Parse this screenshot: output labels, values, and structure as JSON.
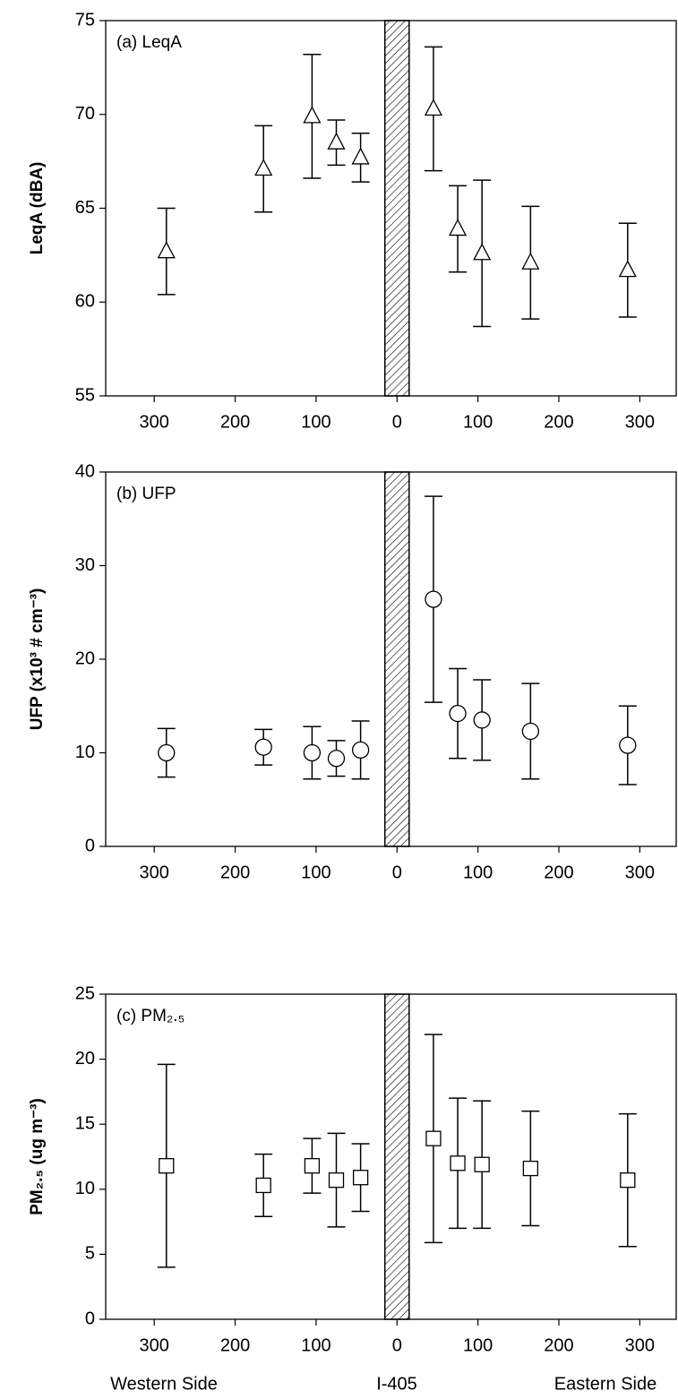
{
  "chart_data": [
    {
      "type": "scatter",
      "panel_label": "(a) LeqA",
      "ylabel": "LeqA (dBA)",
      "marker": "triangle",
      "x": [
        -285,
        -165,
        -105,
        -75,
        -45,
        45,
        75,
        105,
        165,
        285
      ],
      "values": [
        62.7,
        67.1,
        69.9,
        68.5,
        67.7,
        70.3,
        63.9,
        62.6,
        62.1,
        61.7
      ],
      "errors": [
        2.3,
        2.3,
        3.3,
        1.2,
        1.3,
        3.3,
        2.3,
        3.9,
        3.0,
        2.5
      ],
      "xlim": [
        -360,
        345
      ],
      "xticks": [
        {
          "value": -300,
          "label": "300"
        },
        {
          "value": -200,
          "label": "200"
        },
        {
          "value": -100,
          "label": "100"
        },
        0,
        100,
        200,
        300
      ],
      "ylim": [
        55,
        75
      ],
      "yticks": [
        55,
        60,
        65,
        70,
        75
      ],
      "shaded_region": [
        -15,
        15
      ]
    },
    {
      "type": "scatter",
      "panel_label": "(b) UFP",
      "ylabel": "UFP (x10³ # cm⁻³)",
      "marker": "circle",
      "x": [
        -285,
        -165,
        -105,
        -75,
        -45,
        45,
        75,
        105,
        165,
        285
      ],
      "values": [
        10.0,
        10.6,
        10.0,
        9.4,
        10.3,
        26.4,
        14.2,
        13.5,
        12.3,
        10.8
      ],
      "errors": [
        2.6,
        1.9,
        2.8,
        1.9,
        3.1,
        11.0,
        4.8,
        4.3,
        5.1,
        4.2
      ],
      "xlim": [
        -360,
        345
      ],
      "xticks": [
        {
          "value": -300,
          "label": "300"
        },
        {
          "value": -200,
          "label": "200"
        },
        {
          "value": -100,
          "label": "100"
        },
        0,
        100,
        200,
        300
      ],
      "ylim": [
        0,
        40
      ],
      "yticks": [
        0,
        10,
        20,
        30,
        40
      ],
      "shaded_region": [
        -15,
        15
      ]
    },
    {
      "type": "scatter",
      "panel_label": "(c) PM₂.₅",
      "ylabel": "PM₂.₅ (ug m⁻³)",
      "marker": "square",
      "x": [
        -285,
        -165,
        -105,
        -75,
        -45,
        45,
        75,
        105,
        165,
        285
      ],
      "values": [
        11.8,
        10.3,
        11.8,
        10.7,
        10.9,
        13.9,
        12.0,
        11.9,
        11.6,
        10.7
      ],
      "errors": [
        7.8,
        2.4,
        2.1,
        3.6,
        2.6,
        8.0,
        5.0,
        4.9,
        4.4,
        5.1
      ],
      "xlim": [
        -360,
        345
      ],
      "xticks": [
        {
          "value": -300,
          "label": "300"
        },
        {
          "value": -200,
          "label": "200"
        },
        {
          "value": -100,
          "label": "100"
        },
        0,
        100,
        200,
        300
      ],
      "ylim": [
        0,
        25
      ],
      "yticks": [
        0,
        5,
        10,
        15,
        20,
        25
      ],
      "shaded_region": [
        -15,
        15
      ],
      "x_annotations": [
        "Western Side",
        "I-405",
        "Eastern Side"
      ]
    }
  ]
}
